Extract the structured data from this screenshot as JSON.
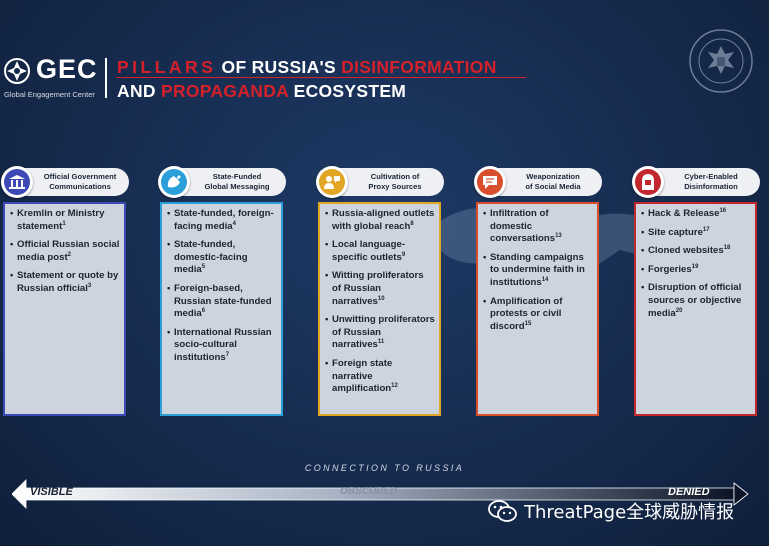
{
  "header": {
    "logo_text": "GEC",
    "logo_subtitle": "Global Engagement Center",
    "title_line1_part1": "PILLARS",
    "title_line1_part2": " OF RUSSIA'S ",
    "title_line1_part3": "DISINFORMATION",
    "title_line2_part1": "AND ",
    "title_line2_part2": "PROPAGANDA",
    "title_line2_part3": " ECOSYSTEM",
    "seal_text": "DEPARTMENT OF STATE · UNITED STATES OF AMERICA"
  },
  "colors": {
    "accent_red": "#d6202a",
    "col1": "#3d4ab5",
    "col2": "#2ba0d8",
    "col3": "#e3a524",
    "col4": "#d94e2c",
    "col5": "#c1272d"
  },
  "columns": [
    {
      "title_l1": "Official Government",
      "title_l2": "Communications",
      "icon": "government-building-icon",
      "items": [
        {
          "text": "Kremlin or Ministry statement",
          "ref": "1"
        },
        {
          "text": "Official Russian social media post",
          "ref": "2"
        },
        {
          "text": "Statement or quote by Russian official",
          "ref": "3"
        }
      ]
    },
    {
      "title_l1": "State-Funded",
      "title_l2": "Global Messaging",
      "icon": "satellite-dish-icon",
      "items": [
        {
          "text": "State-funded, foreign-facing media",
          "ref": "4"
        },
        {
          "text": "State-funded, domestic-facing media",
          "ref": "5"
        },
        {
          "text": "Foreign-based, Russian state-funded media",
          "ref": "6"
        },
        {
          "text": "International Russian socio-cultural institutions",
          "ref": "7"
        }
      ]
    },
    {
      "title_l1": "Cultivation of",
      "title_l2": "Proxy Sources",
      "icon": "proxy-people-icon",
      "items": [
        {
          "text": "Russia-aligned outlets with global reach",
          "ref": "8"
        },
        {
          "text": "Local language-specific outlets",
          "ref": "9"
        },
        {
          "text": "Witting proliferators of Russian narratives",
          "ref": "10"
        },
        {
          "text": "Unwitting proliferators of Russian narratives",
          "ref": "11"
        },
        {
          "text": "Foreign state narrative amplification",
          "ref": "12"
        }
      ]
    },
    {
      "title_l1": "Weaponization",
      "title_l2": "of Social Media",
      "icon": "chat-bubble-icon",
      "items": [
        {
          "text": "Infiltration of domestic conversations",
          "ref": "13"
        },
        {
          "text": "Standing campaigns to undermine faith in institutions",
          "ref": "14"
        },
        {
          "text": "Amplification of protests or civil discord",
          "ref": "15"
        }
      ]
    },
    {
      "title_l1": "Cyber-Enabled",
      "title_l2": "Disinformation",
      "icon": "hacker-icon",
      "items": [
        {
          "text": "Hack & Release",
          "ref": "16"
        },
        {
          "text": "Site capture",
          "ref": "17"
        },
        {
          "text": "Cloned websites",
          "ref": "18"
        },
        {
          "text": "Forgeries",
          "ref": "19"
        },
        {
          "text": "Disruption of official sources or objective media",
          "ref": "20"
        }
      ]
    }
  ],
  "spectrum": {
    "caption": "CONNECTION TO RUSSIA",
    "left": "VISIBLE",
    "middle": "OBSCURED",
    "right": "DENIED"
  },
  "watermark": {
    "text": "ThreatPage全球威胁情报",
    "icon": "wechat-icon"
  }
}
